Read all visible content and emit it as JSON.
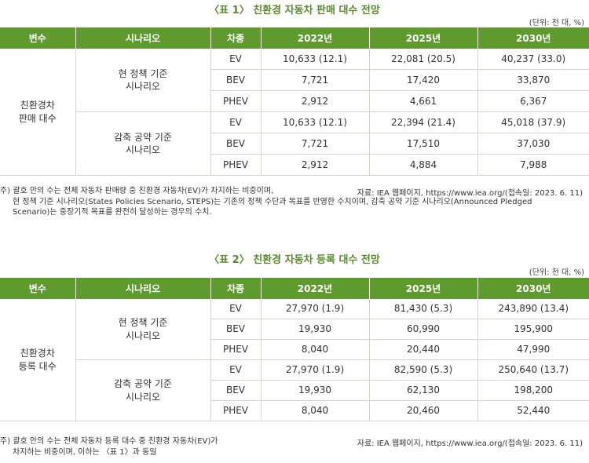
{
  "table1": {
    "title": "〈표 1〉 친환경 자동차 판매 대수 전망",
    "unit": "(단위: 천 대, %)",
    "headers": [
      "변수",
      "시나리오",
      "차종",
      "2022년",
      "2025년",
      "2030년"
    ],
    "variable": [
      "친환경차",
      "판매 대수"
    ],
    "scenarios": [
      {
        "name": [
          "현 정책 기준",
          "시나리오"
        ],
        "rows": [
          {
            "type": "EV",
            "v2022": "10,633 (12.1)",
            "v2025": "22,081 (20.5)",
            "v2030": "40,237 (33.0)"
          },
          {
            "type": "BEV",
            "v2022": "7,721",
            "v2025": "17,420",
            "v2030": "33,870"
          },
          {
            "type": "PHEV",
            "v2022": "2,912",
            "v2025": "4,661",
            "v2030": "6,367"
          }
        ]
      },
      {
        "name": [
          "감축 공약 기준",
          "시나리오"
        ],
        "rows": [
          {
            "type": "EV",
            "v2022": "10,633 (12.1)",
            "v2025": "22,394 (21.4)",
            "v2030": "45,018 (37.9)"
          },
          {
            "type": "BEV",
            "v2022": "7,721",
            "v2025": "17,510",
            "v2030": "37,030"
          },
          {
            "type": "PHEV",
            "v2022": "2,912",
            "v2025": "4,884",
            "v2030": "7,988"
          }
        ]
      }
    ],
    "note_lines": [
      "주) 괄호 안의 수는 전체 자동차 판매량 중 친환경 자동차(EV)가 차지하는 비중이며,",
      "현 정책 기준 시나리오(States Policies Scenario, STEPS)는 기존의 정책 수단과 목표를 반영한 수치이며, 감축 공약 기준 시나리오(Announced Pledged",
      "Scenario)는 중장기적 목표를 완전히 달성하는 경우의 수치."
    ],
    "source": "자료: IEA 웹페이지, https://www.iea.org/(접속일: 2023. 6. 11)"
  },
  "table2": {
    "title": "〈표 2〉 친환경 자동차 등록 대수 전망",
    "unit": "(단위: 천 대, %)",
    "headers": [
      "변수",
      "시나리오",
      "차종",
      "2022년",
      "2025년",
      "2030년"
    ],
    "variable": [
      "친환경차",
      "등록 대수"
    ],
    "scenarios": [
      {
        "name": [
          "현 정책 기준",
          "시나리오"
        ],
        "rows": [
          {
            "type": "EV",
            "v2022": "27,970 (1.9)",
            "v2025": "81,430 (5.3)",
            "v2030": "243,890 (13.4)"
          },
          {
            "type": "BEV",
            "v2022": "19,930",
            "v2025": "60,990",
            "v2030": "195,900"
          },
          {
            "type": "PHEV",
            "v2022": "8,040",
            "v2025": "20,440",
            "v2030": "47,990"
          }
        ]
      },
      {
        "name": [
          "감축 공약 기준",
          "시나리오"
        ],
        "rows": [
          {
            "type": "EV",
            "v2022": "27,970 (1.9)",
            "v2025": "82,590 (5.3)",
            "v2030": "250,640 (13.7)"
          },
          {
            "type": "BEV",
            "v2022": "19,930",
            "v2025": "62,130",
            "v2030": "198,200"
          },
          {
            "type": "PHEV",
            "v2022": "8,040",
            "v2025": "20,460",
            "v2030": "52,440"
          }
        ]
      }
    ],
    "note_lines": [
      "주) 괄호 안의 수는 전체 자동차 등록 대수 중 친환경 자동차(EV)가",
      "차지하는 비중이며, 이하는 〈표 1〉과 동일"
    ],
    "source": "자료: IEA 웹페이지, https://www.iea.org/(접속일: 2023. 6. 11)"
  }
}
